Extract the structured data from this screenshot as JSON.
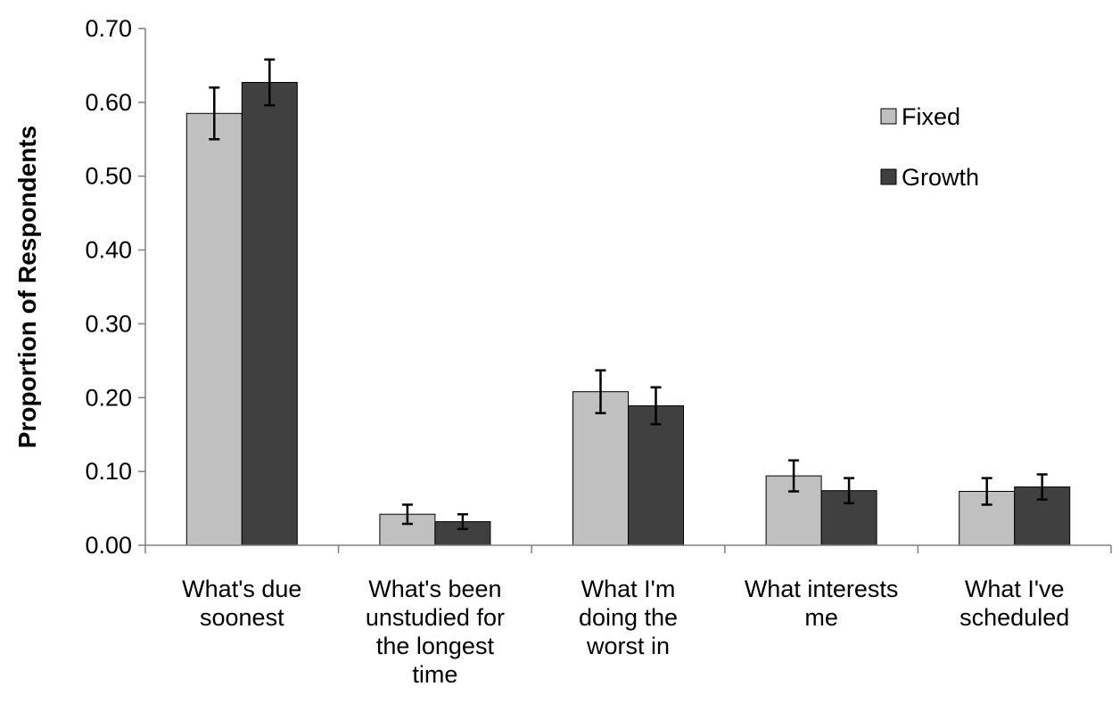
{
  "chart_data": {
    "type": "bar",
    "categories": [
      [
        "What's due",
        "soonest"
      ],
      [
        "What's been",
        "unstudied for",
        "the longest",
        "time"
      ],
      [
        "What I'm",
        "doing the",
        "worst in"
      ],
      [
        "What interests",
        "me"
      ],
      [
        "What I've",
        "scheduled"
      ]
    ],
    "series": [
      {
        "name": "Fixed",
        "color": "#c0c0c0",
        "values": [
          0.585,
          0.042,
          0.208,
          0.094,
          0.073
        ],
        "error": [
          0.035,
          0.013,
          0.029,
          0.021,
          0.018
        ]
      },
      {
        "name": "Growth",
        "color": "#404040",
        "values": [
          0.627,
          0.032,
          0.189,
          0.074,
          0.079
        ],
        "error": [
          0.031,
          0.01,
          0.025,
          0.017,
          0.017
        ]
      }
    ],
    "ylabel": "Proportion of Respondents",
    "xlabel": "",
    "ylim": [
      0,
      0.7
    ],
    "yticks": [
      "0.00",
      "0.10",
      "0.20",
      "0.30",
      "0.40",
      "0.50",
      "0.60",
      "0.70"
    ],
    "legend_position": "top-right",
    "grid": false
  }
}
